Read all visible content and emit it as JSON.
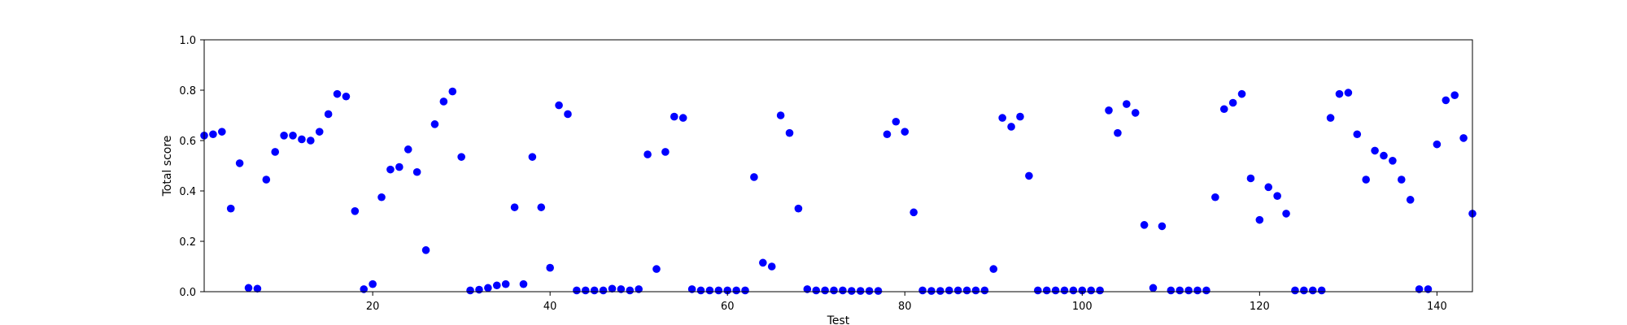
{
  "chart_data": {
    "type": "scatter",
    "title": "",
    "xlabel": "Test",
    "ylabel": "Total score",
    "xlim": [
      1,
      144
    ],
    "ylim": [
      0.0,
      1.0
    ],
    "grid": false,
    "marker_color": "#0000ff",
    "xticks": [
      20,
      40,
      60,
      80,
      100,
      120,
      140
    ],
    "yticks": [
      0.0,
      0.2,
      0.4,
      0.6,
      0.8,
      1.0
    ],
    "xtick_labels": [
      "20",
      "40",
      "60",
      "80",
      "100",
      "120",
      "140"
    ],
    "ytick_labels": [
      "0.0",
      "0.2",
      "0.4",
      "0.6",
      "0.8",
      "1.0"
    ],
    "series": [
      {
        "x": [
          1,
          2,
          3,
          4,
          5,
          6,
          7,
          8,
          9,
          10,
          11,
          12,
          13,
          14,
          15,
          16,
          17,
          18,
          19,
          20,
          21,
          22,
          23,
          24,
          25,
          26,
          27,
          28,
          29,
          30,
          31,
          32,
          33,
          34,
          35,
          36,
          37,
          38,
          39,
          40,
          41,
          42,
          43,
          44,
          45,
          46,
          47,
          48,
          49,
          50,
          51,
          52,
          53,
          54,
          55,
          56,
          57,
          58,
          59,
          60,
          61,
          62,
          63,
          64,
          65,
          66,
          67,
          68,
          69,
          70,
          71,
          72,
          73,
          74,
          75,
          76,
          77,
          78,
          79,
          80,
          81,
          82,
          83,
          84,
          85,
          86,
          87,
          88,
          89,
          90,
          91,
          92,
          93,
          94,
          95,
          96,
          97,
          98,
          99,
          100,
          101,
          102,
          103,
          104,
          105,
          106,
          107,
          108,
          109,
          110,
          111,
          112,
          113,
          114,
          115,
          116,
          117,
          118,
          119,
          120,
          121,
          122,
          123,
          124,
          125,
          126,
          127,
          128,
          129,
          130,
          131,
          132,
          133,
          134,
          135,
          136,
          137,
          138,
          139,
          140,
          141,
          142,
          143,
          144
        ],
        "y": [
          0.62,
          0.625,
          0.635,
          0.33,
          0.51,
          0.015,
          0.012,
          0.445,
          0.555,
          0.62,
          0.62,
          0.605,
          0.6,
          0.635,
          0.705,
          0.785,
          0.775,
          0.32,
          0.01,
          0.03,
          0.375,
          0.485,
          0.495,
          0.565,
          0.475,
          0.165,
          0.665,
          0.755,
          0.795,
          0.535,
          0.005,
          0.008,
          0.015,
          0.025,
          0.03,
          0.335,
          0.03,
          0.535,
          0.335,
          0.095,
          0.74,
          0.705,
          0.005,
          0.005,
          0.005,
          0.005,
          0.012,
          0.01,
          0.005,
          0.01,
          0.545,
          0.09,
          0.555,
          0.695,
          0.69,
          0.01,
          0.005,
          0.005,
          0.005,
          0.005,
          0.005,
          0.005,
          0.455,
          0.115,
          0.1,
          0.7,
          0.63,
          0.33,
          0.01,
          0.005,
          0.005,
          0.005,
          0.005,
          0.003,
          0.003,
          0.003,
          0.003,
          0.625,
          0.675,
          0.635,
          0.315,
          0.005,
          0.003,
          0.003,
          0.005,
          0.005,
          0.005,
          0.005,
          0.005,
          0.09,
          0.69,
          0.655,
          0.695,
          0.46,
          0.005,
          0.005,
          0.005,
          0.005,
          0.005,
          0.005,
          0.005,
          0.005,
          0.72,
          0.63,
          0.745,
          0.71,
          0.265,
          0.015,
          0.26,
          0.005,
          0.005,
          0.005,
          0.005,
          0.005,
          0.375,
          0.725,
          0.75,
          0.785,
          0.45,
          0.285,
          0.415,
          0.38,
          0.31,
          0.005,
          0.005,
          0.005,
          0.005,
          0.69,
          0.785,
          0.79,
          0.625,
          0.445,
          0.56,
          0.54,
          0.52,
          0.445,
          0.365,
          0.01,
          0.01,
          0.585,
          0.76,
          0.78,
          0.61,
          0.31
        ]
      }
    ]
  }
}
